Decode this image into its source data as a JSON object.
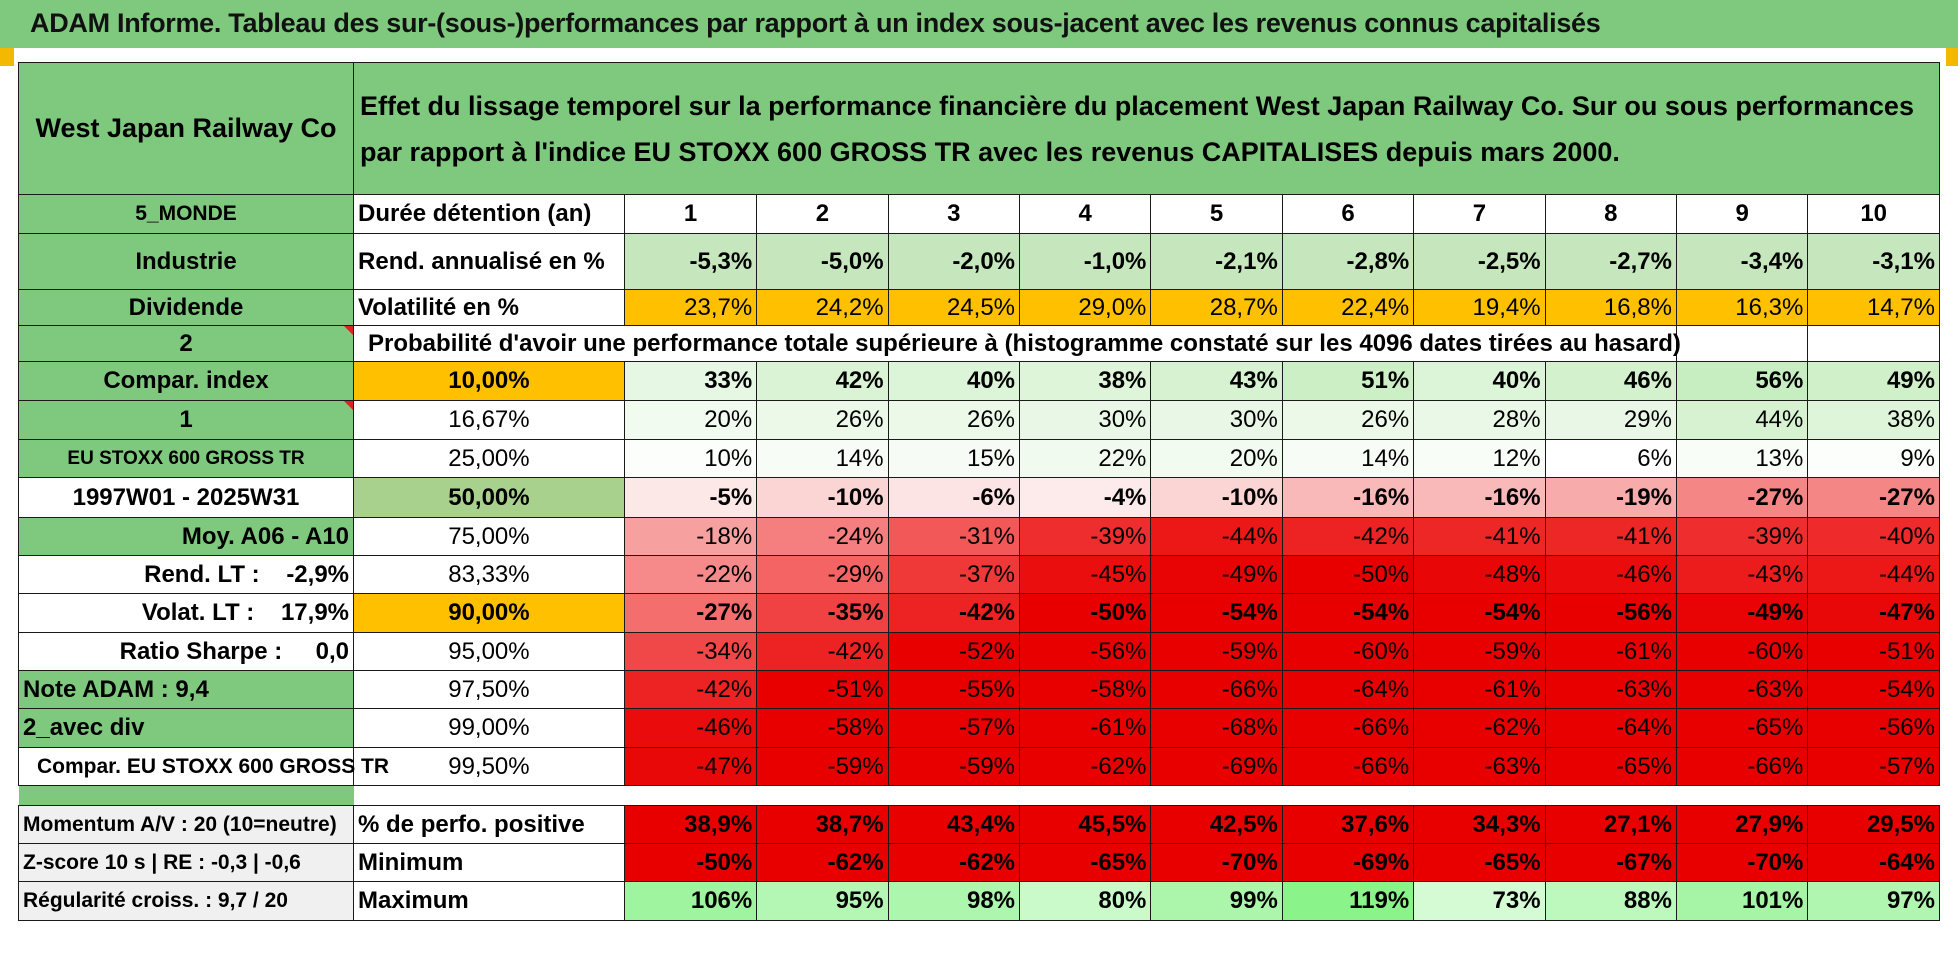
{
  "header_title": "ADAM Informe. Tableau des sur-(sous-)performances par rapport à un index sous-jacent avec les revenus connus capitalisés",
  "company": "West Japan Railway Co",
  "description": "Effet du lissage temporel sur la performance financière du placement West Japan Railway Co. Sur ou sous performances par rapport à l'indice EU STOXX 600 GROSS TR avec les revenus CAPITALISES depuis mars 2000.",
  "left": {
    "zone": "5_MONDE",
    "sector": "Industrie",
    "type": "Dividende",
    "num1": "2",
    "compar_label": "Compar. index",
    "num2": "1",
    "index_name": "EU STOXX 600 GROSS TR",
    "period": "1997W01 - 2025W31",
    "moy": "Moy. A06 - A10",
    "rend_lt": "Rend. LT :    -2,9%",
    "volat_lt": "Volat. LT :    17,9%",
    "sharpe": "Ratio Sharpe :     0,0",
    "note": "Note ADAM : 9,4",
    "avec_div": "2_avec div",
    "compar2": "Compar. EU STOXX 600 GROSS TR",
    "momentum": "Momentum A/V : 20 (10=neutre)",
    "zscore": "Z-score 10 s | RE : -0,3 | -0,6",
    "regularite": "Régularité croiss. : 9,7 / 20"
  },
  "labels": {
    "duree": "Durée détention (an)",
    "rend": "Rend. annualisé en %",
    "vol": "Volatilité en %",
    "proba": "Probabilité d'avoir une performance totale supérieure à (histogramme constaté sur les 4096 dates tirées au hasard)",
    "pct_pos": "% de perfo. positive",
    "min": "Minimum",
    "max": "Maximum"
  },
  "years": [
    "1",
    "2",
    "3",
    "4",
    "5",
    "6",
    "7",
    "8",
    "9",
    "10"
  ],
  "rend": [
    "-5,3%",
    "-5,0%",
    "-2,0%",
    "-1,0%",
    "-2,1%",
    "-2,8%",
    "-2,5%",
    "-2,7%",
    "-3,4%",
    "-3,1%"
  ],
  "vol": [
    "23,7%",
    "24,2%",
    "24,5%",
    "29,0%",
    "28,7%",
    "22,4%",
    "19,4%",
    "16,8%",
    "16,3%",
    "14,7%"
  ],
  "prob_rows": [
    {
      "pct": "10,00%",
      "vals": [
        "33%",
        "42%",
        "40%",
        "38%",
        "43%",
        "51%",
        "40%",
        "46%",
        "56%",
        "49%"
      ],
      "colors": [
        "#e6f7e3",
        "#d9f3d4",
        "#dcf4d7",
        "#def5d9",
        "#d6f2d1",
        "#ccefc6",
        "#dcf4d7",
        "#d2f1cc",
        "#c7eec1",
        "#cff0c9"
      ]
    },
    {
      "pct": "16,67%",
      "vals": [
        "20%",
        "26%",
        "26%",
        "30%",
        "30%",
        "26%",
        "28%",
        "29%",
        "44%",
        "38%"
      ],
      "colors": [
        "#f2fbf0",
        "#ecf9e9",
        "#ecf9e9",
        "#e9f8e6",
        "#e9f8e6",
        "#ecf9e9",
        "#eaf8e7",
        "#e9f8e6",
        "#d6f2d1",
        "#def5d9"
      ]
    },
    {
      "pct": "25,00%",
      "vals": [
        "10%",
        "14%",
        "15%",
        "22%",
        "20%",
        "14%",
        "12%",
        "6%",
        "13%",
        "9%"
      ],
      "colors": [
        "#fbfefa",
        "#f7fdf6",
        "#f6fcf5",
        "#f0faee",
        "#f2fbf0",
        "#f7fdf6",
        "#f9fdf8",
        "#fefffe",
        "#f8fdf7",
        "#fcfefb"
      ]
    },
    {
      "pct": "50,00%",
      "vals": [
        "-5%",
        "-10%",
        "-6%",
        "-4%",
        "-10%",
        "-16%",
        "-16%",
        "-19%",
        "-27%",
        "-27%"
      ],
      "colors": [
        "#fde8e8",
        "#fbd4d4",
        "#fde4e4",
        "#fdeaea",
        "#fbd4d4",
        "#f9b9b9",
        "#f9b9b9",
        "#f7abab",
        "#f48686",
        "#f48686"
      ]
    },
    {
      "pct": "75,00%",
      "vals": [
        "-18%",
        "-24%",
        "-31%",
        "-39%",
        "-44%",
        "-42%",
        "-41%",
        "-41%",
        "-39%",
        "-40%"
      ],
      "colors": [
        "#f7a0a0",
        "#f57e7e",
        "#f25858",
        "#ee2e2e",
        "#ec1818",
        "#ed2222",
        "#ed2626",
        "#ed2626",
        "#ee2e2e",
        "#ee2a2a"
      ]
    },
    {
      "pct": "83,33%",
      "vals": [
        "-22%",
        "-29%",
        "-37%",
        "-45%",
        "-49%",
        "-50%",
        "-48%",
        "-46%",
        "-43%",
        "-44%"
      ],
      "colors": [
        "#f68989",
        "#f46464",
        "#ef3838",
        "#ea0e0e",
        "#e80404",
        "#e80000",
        "#e90606",
        "#ea0c0c",
        "#ec1c1c",
        "#ec1818"
      ]
    },
    {
      "pct": "90,00%",
      "vals": [
        "-27%",
        "-35%",
        "-42%",
        "-50%",
        "-54%",
        "-54%",
        "-54%",
        "-56%",
        "-49%",
        "-47%"
      ],
      "colors": [
        "#f46e6e",
        "#f04242",
        "#ed2222",
        "#e80000",
        "#e80000",
        "#e80000",
        "#e80000",
        "#e80000",
        "#e80404",
        "#e90808"
      ]
    },
    {
      "pct": "95,00%",
      "vals": [
        "-34%",
        "-42%",
        "-52%",
        "-56%",
        "-59%",
        "-60%",
        "-59%",
        "-61%",
        "-60%",
        "-51%"
      ],
      "colors": [
        "#f04848",
        "#ed2222",
        "#e80000",
        "#e80000",
        "#e80000",
        "#e80000",
        "#e80000",
        "#e80000",
        "#e80000",
        "#e80000"
      ]
    },
    {
      "pct": "97,50%",
      "vals": [
        "-42%",
        "-51%",
        "-55%",
        "-58%",
        "-66%",
        "-64%",
        "-61%",
        "-63%",
        "-63%",
        "-54%"
      ],
      "colors": [
        "#ed2222",
        "#e80000",
        "#e80000",
        "#e80000",
        "#e80000",
        "#e80000",
        "#e80000",
        "#e80000",
        "#e80000",
        "#e80000"
      ]
    },
    {
      "pct": "99,00%",
      "vals": [
        "-46%",
        "-58%",
        "-57%",
        "-61%",
        "-68%",
        "-66%",
        "-62%",
        "-64%",
        "-65%",
        "-56%"
      ],
      "colors": [
        "#ea0c0c",
        "#e80000",
        "#e80000",
        "#e80000",
        "#e80000",
        "#e80000",
        "#e80000",
        "#e80000",
        "#e80000",
        "#e80000"
      ]
    },
    {
      "pct": "99,50%",
      "vals": [
        "-47%",
        "-59%",
        "-59%",
        "-62%",
        "-69%",
        "-66%",
        "-63%",
        "-65%",
        "-66%",
        "-57%"
      ],
      "colors": [
        "#e90808",
        "#e80000",
        "#e80000",
        "#e80000",
        "#e80000",
        "#e80000",
        "#e80000",
        "#e80000",
        "#e80000",
        "#e80000"
      ]
    }
  ],
  "pct_pos": [
    "38,9%",
    "38,7%",
    "43,4%",
    "45,5%",
    "42,5%",
    "37,6%",
    "34,3%",
    "27,1%",
    "27,9%",
    "29,5%"
  ],
  "minimum": [
    "-50%",
    "-62%",
    "-62%",
    "-65%",
    "-70%",
    "-69%",
    "-65%",
    "-67%",
    "-70%",
    "-64%"
  ],
  "maximum": [
    "106%",
    "95%",
    "98%",
    "80%",
    "99%",
    "119%",
    "73%",
    "88%",
    "101%",
    "97%"
  ],
  "max_colors": [
    "#9ff59f",
    "#b4f7b4",
    "#adf6ad",
    "#cafaca",
    "#abf6ab",
    "#8af38a",
    "#d4fbd4",
    "#bdf8bd",
    "#a6f5a6",
    "#b0f6b0"
  ]
}
